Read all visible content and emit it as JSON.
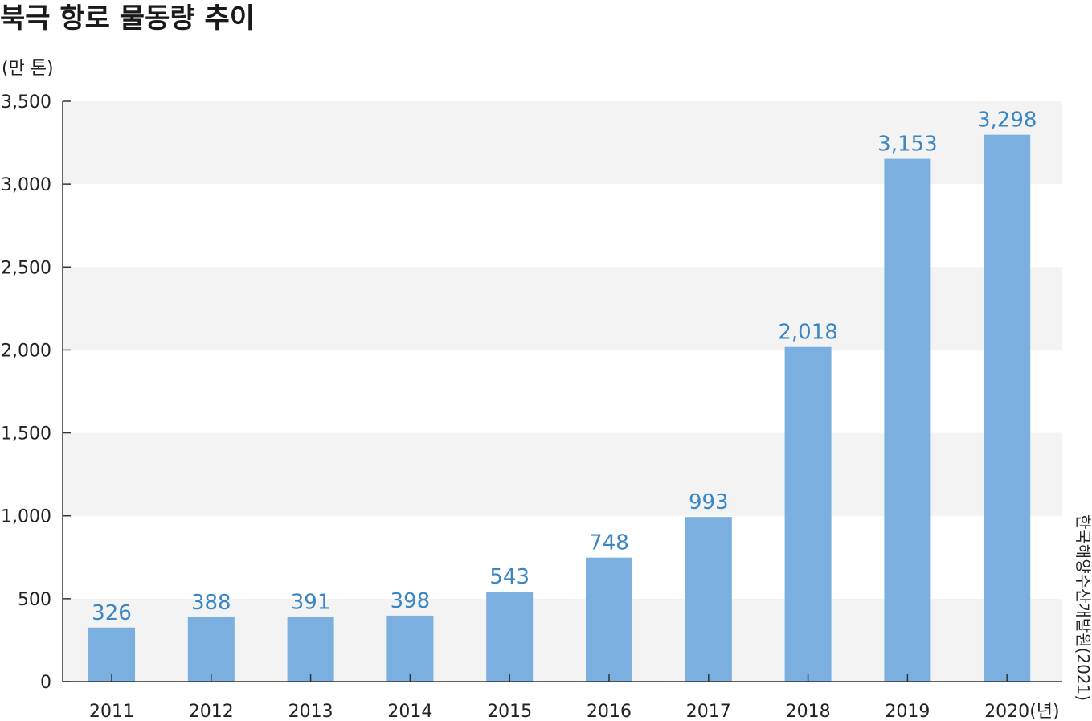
{
  "chart_data": {
    "type": "bar",
    "title": "북극 항로 물동량 추이",
    "ylabel": "(만 톤)",
    "xlabel_suffix": "(년)",
    "source": "한국해양수산개발원(2021)",
    "categories": [
      "2011",
      "2012",
      "2013",
      "2014",
      "2015",
      "2016",
      "2017",
      "2018",
      "2019",
      "2020"
    ],
    "values": [
      326,
      388,
      391,
      398,
      543,
      748,
      993,
      2018,
      3153,
      3298
    ],
    "value_labels": [
      "326",
      "388",
      "391",
      "398",
      "543",
      "748",
      "993",
      "2,018",
      "3,153",
      "3,298"
    ],
    "ylim": [
      0,
      3500
    ],
    "yticks": [
      0,
      500,
      1000,
      1500,
      2000,
      2500,
      3000,
      3500
    ],
    "ytick_labels": [
      "0",
      "500",
      "1,000",
      "1,500",
      "2,000",
      "2,500",
      "3,000",
      "3,500"
    ],
    "bar_color": "#7aafe0",
    "value_label_color": "#3a86c4",
    "band_color": "#f3f3f3",
    "grid": "alternating horizontal bands",
    "legend": "none"
  }
}
